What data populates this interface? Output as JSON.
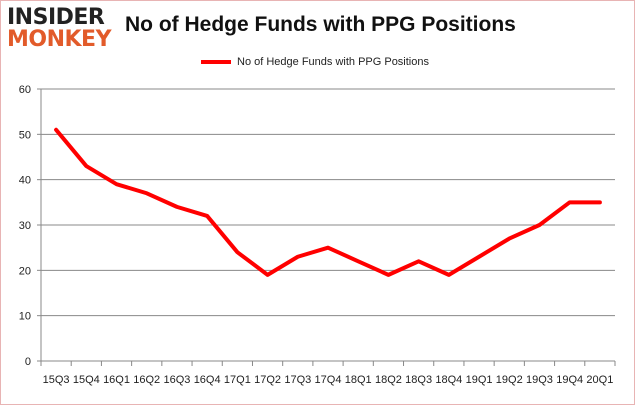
{
  "logo": {
    "line1": "INSIDER",
    "line2": "MONKEY"
  },
  "chart_data": {
    "type": "line",
    "title": "No of Hedge Funds with PPG Positions",
    "categories": [
      "15Q3",
      "15Q4",
      "16Q1",
      "16Q2",
      "16Q3",
      "16Q4",
      "17Q1",
      "17Q2",
      "17Q3",
      "17Q4",
      "18Q1",
      "18Q2",
      "18Q3",
      "18Q4",
      "19Q1",
      "19Q2",
      "19Q3",
      "19Q4",
      "20Q1"
    ],
    "series": [
      {
        "name": "No of Hedge Funds with PPG Positions",
        "color": "#ff0000",
        "values": [
          51,
          43,
          39,
          37,
          34,
          32,
          24,
          19,
          23,
          25,
          22,
          19,
          22,
          19,
          23,
          27,
          30,
          35,
          35
        ]
      }
    ],
    "ylim": [
      0,
      60
    ],
    "yticks": [
      0,
      10,
      20,
      30,
      40,
      50,
      60
    ],
    "grid": true,
    "legend": "top-center",
    "xlabel": "",
    "ylabel": ""
  }
}
